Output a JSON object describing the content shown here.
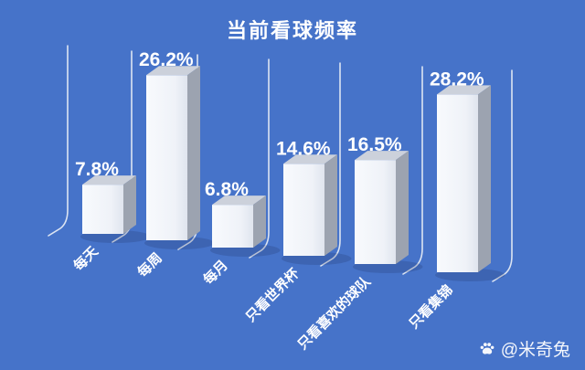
{
  "chart_data": {
    "type": "bar",
    "style": "3d-cuboid-columns",
    "title": "当前看球频率",
    "categories": [
      "每天",
      "每周",
      "每月",
      "只看世界杯",
      "只看喜欢的球队",
      "只看集锦"
    ],
    "values": [
      7.8,
      26.2,
      6.8,
      14.6,
      16.5,
      28.2
    ],
    "value_labels": [
      "7.8%",
      "26.2%",
      "6.8%",
      "14.6%",
      "16.5%",
      "28.2%"
    ],
    "unit": "%",
    "xlabel": "",
    "ylabel": "",
    "legend": false,
    "gridlines": false,
    "axis_tick_labels_rotated_degrees": -45,
    "colors": {
      "background": "#4673c9",
      "bar_front": "#eff2f8",
      "bar_front_light": "#f8fafd",
      "bar_front_dark": "#dfe4ee",
      "bar_side": "#9ca3b0",
      "bar_top": "#ccd1db",
      "guide_line": "#dce4f2",
      "text": "#ffffff",
      "shadow": "rgba(20,35,80,0.18)"
    }
  },
  "watermark": {
    "icon": "paw-icon",
    "text": "@米奇兔"
  }
}
